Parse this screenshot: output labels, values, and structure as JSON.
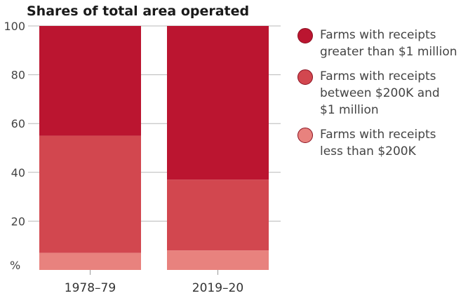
{
  "chart_data": {
    "type": "stacked-bar",
    "title": "Shares of total area operated",
    "ylabel": "%",
    "ylim": [
      0,
      100
    ],
    "yticks": [
      20,
      40,
      60,
      80,
      100
    ],
    "categories": [
      "1978–79",
      "2019–20"
    ],
    "series": [
      {
        "name": "Farms with receipts less than $200K",
        "legend_label": "Farms with receipts\nless than $200K",
        "color": "#e8827e",
        "values": [
          7,
          8
        ]
      },
      {
        "name": "Farms with receipts between $200K and $1 million",
        "legend_label": "Farms with receipts\nbetween $200K and\n$1 million",
        "color": "#d2474f",
        "values": [
          48,
          29
        ]
      },
      {
        "name": "Farms with receipts greater than $1 million",
        "legend_label": "Farms with receipts\ngreater than $1 million",
        "color": "#bb1530",
        "values": [
          45,
          63
        ]
      }
    ],
    "legend_position": "right"
  }
}
